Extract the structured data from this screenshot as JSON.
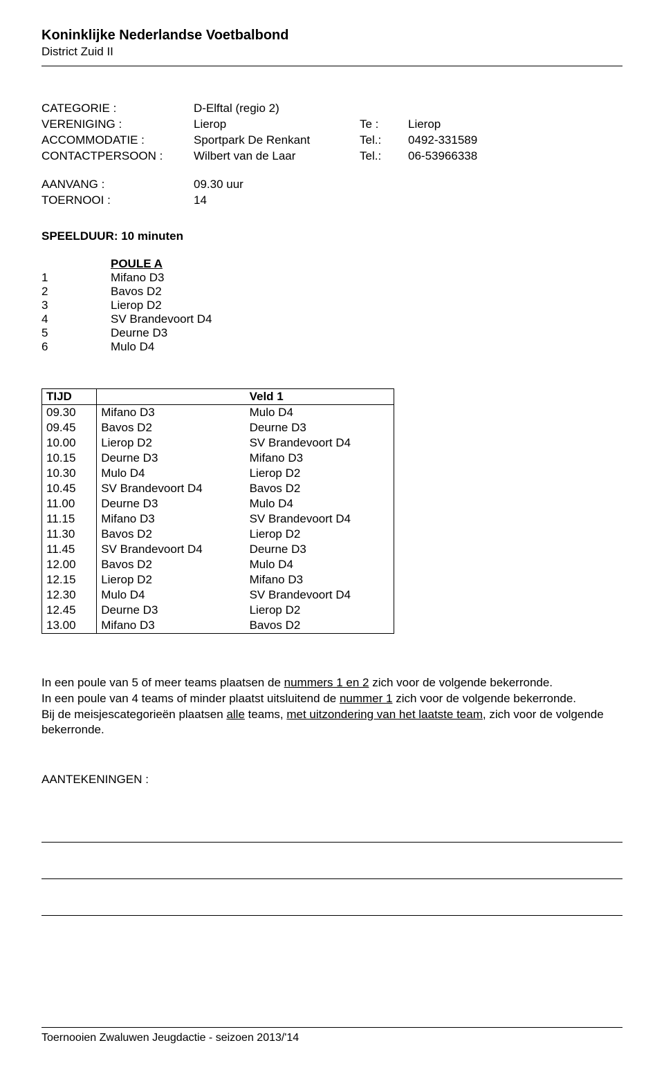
{
  "header": {
    "org": "Koninklijke Nederlandse Voetbalbond",
    "district": "District Zuid II"
  },
  "info": {
    "categorie_label": "CATEGORIE :",
    "categorie_value": "D-Elftal   (regio 2)",
    "vereniging_label": "VERENIGING :",
    "vereniging_value": "Lierop",
    "vereniging_te_label": "Te :",
    "vereniging_te_value": "Lierop",
    "accommodatie_label": "ACCOMMODATIE :",
    "accommodatie_value": "Sportpark De Renkant",
    "accommodatie_tel_label": "Tel.:",
    "accommodatie_tel_value": "0492-331589",
    "contact_label": "CONTACTPERSOON :",
    "contact_value": "Wilbert van de Laar",
    "contact_tel_label": "Tel.:",
    "contact_tel_value": "06-53966338",
    "aanvang_label": "AANVANG :",
    "aanvang_value": "09.30 uur",
    "toernooi_label": "TOERNOOI :",
    "toernooi_value": "14"
  },
  "speelduur": "SPEELDUUR: 10 minuten",
  "poule": {
    "title": "POULE A",
    "teams": [
      {
        "n": "1",
        "name": "Mifano D3"
      },
      {
        "n": "2",
        "name": "Bavos  D2"
      },
      {
        "n": "3",
        "name": "Lierop  D2"
      },
      {
        "n": "4",
        "name": "SV Brandevoort D4"
      },
      {
        "n": "5",
        "name": "Deurne  D3"
      },
      {
        "n": "6",
        "name": "Mulo  D4"
      }
    ]
  },
  "schedule": {
    "header_time": "TIJD",
    "header_field": "Veld 1",
    "rows": [
      {
        "t": "09.30",
        "h": "Mifano D3",
        "a": "Mulo  D4"
      },
      {
        "t": "09.45",
        "h": "Bavos  D2",
        "a": "Deurne  D3"
      },
      {
        "t": "10.00",
        "h": "Lierop  D2",
        "a": "SV Brandevoort D4"
      },
      {
        "t": "10.15",
        "h": "Deurne  D3",
        "a": "Mifano D3"
      },
      {
        "t": "10.30",
        "h": "Mulo  D4",
        "a": "Lierop  D2"
      },
      {
        "t": "10.45",
        "h": "SV Brandevoort D4",
        "a": "Bavos  D2"
      },
      {
        "t": "11.00",
        "h": "Deurne  D3",
        "a": "Mulo  D4"
      },
      {
        "t": "11.15",
        "h": "Mifano D3",
        "a": "SV Brandevoort D4"
      },
      {
        "t": "11.30",
        "h": "Bavos  D2",
        "a": "Lierop  D2"
      },
      {
        "t": "11.45",
        "h": "SV Brandevoort D4",
        "a": "Deurne  D3"
      },
      {
        "t": "12.00",
        "h": "Bavos  D2",
        "a": "Mulo  D4"
      },
      {
        "t": "12.15",
        "h": "Lierop  D2",
        "a": "Mifano D3"
      },
      {
        "t": "12.30",
        "h": "Mulo  D4",
        "a": "SV Brandevoort D4"
      },
      {
        "t": "12.45",
        "h": "Deurne  D3",
        "a": "Lierop  D2"
      },
      {
        "t": "13.00",
        "h": "Mifano D3",
        "a": "Bavos  D2"
      }
    ]
  },
  "notes": {
    "line1_a": "In een poule van 5 of meer teams plaatsen de ",
    "line1_u": "nummers 1 en 2",
    "line1_b": " zich voor de volgende bekerronde.",
    "line2_a": "In een poule van 4 teams of minder plaatst uitsluitend de ",
    "line2_u": "nummer 1",
    "line2_b": " zich voor de volgende bekerronde.",
    "line3_a": "Bij de meisjescategorieën plaatsen ",
    "line3_u": "alle",
    "line3_b": " teams, ",
    "line3_u2": "met uitzondering van het laatste team",
    "line3_c": ", zich voor de volgende bekerronde."
  },
  "aantek_label": "AANTEKENINGEN :",
  "footer": "Toernooien Zwaluwen Jeugdactie - seizoen 2013/'14"
}
